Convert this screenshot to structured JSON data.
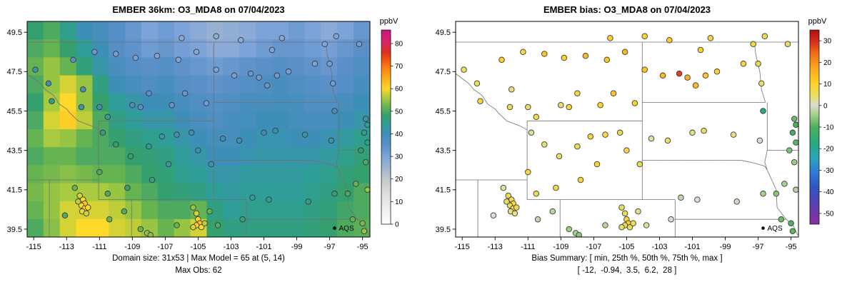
{
  "chart_data": [
    {
      "type": "heatmap",
      "title": "EMBER 36km: O3_MDA8 on 07/04/2023",
      "xlabel": "",
      "ylabel": "",
      "x_ticks": [
        -115,
        -113,
        -111,
        -109,
        -107,
        -105,
        -103,
        -101,
        -99,
        -97,
        -95
      ],
      "y_ticks": [
        39.5,
        41.5,
        43.5,
        45.5,
        47.5,
        49.5
      ],
      "lon_range": [
        -115.4,
        -94.55
      ],
      "lat_range": [
        39.1,
        50.05
      ],
      "colorbar": {
        "label": "ppbV",
        "range": [
          0,
          86
        ],
        "ticks": [
          0,
          10,
          20,
          30,
          40,
          50,
          60,
          70,
          80
        ],
        "stops": [
          [
            0,
            "#ffffff"
          ],
          [
            14,
            "#dcdcdc"
          ],
          [
            20,
            "#c2c8ce"
          ],
          [
            25,
            "#9fb4d2"
          ],
          [
            30,
            "#7da4d8"
          ],
          [
            35,
            "#5a8fc8"
          ],
          [
            40,
            "#3e8fb8"
          ],
          [
            44,
            "#2f9e98"
          ],
          [
            48,
            "#35a06e"
          ],
          [
            52,
            "#66b351"
          ],
          [
            56,
            "#a8ca3e"
          ],
          [
            60,
            "#ffd92a"
          ],
          [
            64,
            "#ffb21e"
          ],
          [
            68,
            "#ff8c12"
          ],
          [
            72,
            "#f4600e"
          ],
          [
            76,
            "#e03020"
          ],
          [
            81,
            "#d6256e"
          ],
          [
            86,
            "#c71585"
          ]
        ]
      },
      "grid": {
        "n_cols": 21,
        "n_rows": 12,
        "values": [
          [
            48,
            50,
            45,
            40,
            38,
            36,
            33,
            30,
            32,
            30,
            28,
            26,
            27,
            28,
            30,
            30,
            32,
            30,
            28,
            30,
            33
          ],
          [
            50,
            52,
            48,
            44,
            40,
            36,
            34,
            32,
            33,
            31,
            30,
            28,
            28,
            30,
            32,
            33,
            33,
            32,
            31,
            33,
            35
          ],
          [
            52,
            55,
            52,
            47,
            42,
            38,
            36,
            35,
            36,
            34,
            33,
            32,
            33,
            34,
            35,
            36,
            35,
            34,
            33,
            35,
            37
          ],
          [
            50,
            55,
            58,
            55,
            46,
            40,
            38,
            37,
            38,
            36,
            35,
            34,
            35,
            36,
            37,
            38,
            37,
            36,
            35,
            36,
            38
          ],
          [
            48,
            56,
            60,
            55,
            48,
            44,
            42,
            40,
            40,
            38,
            37,
            36,
            37,
            38,
            38,
            39,
            38,
            37,
            37,
            38,
            40
          ],
          [
            50,
            58,
            61,
            57,
            50,
            46,
            44,
            42,
            42,
            40,
            38,
            37,
            38,
            39,
            40,
            40,
            39,
            38,
            38,
            40,
            42
          ],
          [
            52,
            56,
            55,
            52,
            50,
            48,
            46,
            45,
            44,
            42,
            40,
            39,
            39,
            40,
            41,
            41,
            40,
            40,
            41,
            43,
            45
          ],
          [
            50,
            52,
            52,
            50,
            50,
            50,
            48,
            47,
            46,
            44,
            42,
            40,
            40,
            41,
            42,
            42,
            42,
            42,
            43,
            45,
            47
          ],
          [
            52,
            53,
            54,
            53,
            52,
            52,
            50,
            48,
            47,
            45,
            44,
            42,
            42,
            43,
            43,
            43,
            43,
            44,
            45,
            47,
            48
          ],
          [
            53,
            55,
            56,
            56,
            56,
            55,
            52,
            50,
            48,
            47,
            46,
            44,
            43,
            44,
            44,
            44,
            44,
            45,
            46,
            48,
            50
          ],
          [
            52,
            55,
            58,
            58,
            58,
            57,
            55,
            52,
            50,
            50,
            52,
            46,
            44,
            45,
            45,
            45,
            45,
            46,
            47,
            49,
            50
          ],
          [
            50,
            54,
            58,
            60,
            60,
            58,
            57,
            55,
            52,
            55,
            58,
            48,
            46,
            46,
            46,
            46,
            46,
            47,
            48,
            50,
            51
          ]
        ]
      },
      "point_value_key": "obs",
      "captions": [
        "Domain size: 31x53 | Max Model = 65 at (5, 14)",
        "Max Obs: 62"
      ]
    },
    {
      "type": "scatter",
      "title": "EMBER bias: O3_MDA8 on 07/04/2023",
      "xlabel": "",
      "ylabel": "",
      "x_ticks": [
        -115,
        -113,
        -111,
        -109,
        -107,
        -105,
        -103,
        -101,
        -99,
        -97,
        -95
      ],
      "y_ticks": [
        39.5,
        41.5,
        43.5,
        45.5,
        47.5,
        49.5
      ],
      "lon_range": [
        -115.4,
        -94.55
      ],
      "lat_range": [
        39.1,
        50.05
      ],
      "colorbar": {
        "label": "ppbV",
        "range": [
          -55,
          35
        ],
        "ticks": [
          -50,
          -40,
          -30,
          -20,
          -10,
          0,
          10,
          20,
          30
        ],
        "stops": [
          [
            -55,
            "#8b2fa0"
          ],
          [
            -46,
            "#5a3fb0"
          ],
          [
            -38,
            "#2f55c5"
          ],
          [
            -30,
            "#2f7fd6"
          ],
          [
            -24,
            "#2aa6b8"
          ],
          [
            -18,
            "#28a882"
          ],
          [
            -10,
            "#4daf5f"
          ],
          [
            -4,
            "#a8d18a"
          ],
          [
            0,
            "#d8dcd6"
          ],
          [
            4,
            "#e6e06a"
          ],
          [
            10,
            "#ffd22a"
          ],
          [
            17,
            "#ffa81e"
          ],
          [
            24,
            "#f1701a"
          ],
          [
            30,
            "#d62a1e"
          ],
          [
            35,
            "#b01010"
          ]
        ]
      },
      "point_value_key": "bias",
      "captions": [
        "Bias Summary: [ min, 25th %, 50th %, 75th %, max ]",
        "[ -12,  -0.94,  3.5,  6.2,  28 ]"
      ]
    }
  ],
  "map": {
    "legend_label": "AQS",
    "borders": [
      [
        [
          -115.4,
          49
        ],
        [
          -94.55,
          49
        ]
      ],
      [
        [
          -115.4,
          47.4
        ],
        [
          -114.6,
          46.9
        ],
        [
          -114.3,
          46.6
        ],
        [
          -113.8,
          46.3
        ],
        [
          -113.45,
          45.85
        ],
        [
          -113.0,
          45.6
        ],
        [
          -112.8,
          45.4
        ],
        [
          -112.3,
          45.0
        ],
        [
          -111.5,
          44.75
        ],
        [
          -111.05,
          44.55
        ]
      ],
      [
        [
          -111.05,
          45.0
        ],
        [
          -111.05,
          41.0
        ]
      ],
      [
        [
          -111.05,
          45.0
        ],
        [
          -104.05,
          45.0
        ]
      ],
      [
        [
          -104.05,
          49.0
        ],
        [
          -104.05,
          41.0
        ]
      ],
      [
        [
          -111.05,
          41.0
        ],
        [
          -102.05,
          41.0
        ]
      ],
      [
        [
          -115.4,
          42.0
        ],
        [
          -111.05,
          42.0
        ]
      ],
      [
        [
          -114.05,
          42.0
        ],
        [
          -114.05,
          39.1
        ]
      ],
      [
        [
          -109.05,
          41.0
        ],
        [
          -109.05,
          39.1
        ]
      ],
      [
        [
          -102.05,
          41.0
        ],
        [
          -102.05,
          39.1
        ]
      ],
      [
        [
          -102.05,
          40.0
        ],
        [
          -95.3,
          40.0
        ],
        [
          -94.9,
          39.75
        ],
        [
          -94.6,
          39.2
        ]
      ],
      [
        [
          -104.05,
          45.94
        ],
        [
          -96.56,
          45.94
        ]
      ],
      [
        [
          -104.05,
          43.0
        ],
        [
          -98.0,
          42.99
        ],
        [
          -97.2,
          42.85
        ],
        [
          -96.6,
          42.7
        ],
        [
          -96.45,
          42.5
        ]
      ],
      [
        [
          -96.45,
          42.5
        ],
        [
          -95.9,
          41.5
        ],
        [
          -95.85,
          40.6
        ],
        [
          -95.3,
          40.0
        ]
      ],
      [
        [
          -96.45,
          45.94
        ],
        [
          -96.45,
          43.5
        ]
      ],
      [
        [
          -96.56,
          45.94
        ],
        [
          -96.8,
          46.6
        ],
        [
          -96.9,
          47.5
        ],
        [
          -97.15,
          48.4
        ],
        [
          -97.23,
          49.0
        ]
      ],
      [
        [
          -96.45,
          43.5
        ],
        [
          -94.55,
          43.5
        ]
      ],
      [
        [
          -96.45,
          43.5
        ],
        [
          -96.6,
          42.9
        ],
        [
          -96.45,
          42.5
        ]
      ]
    ],
    "stations": [
      [
        -114.9,
        47.6,
        42,
        5
      ],
      [
        -114.1,
        46.9,
        40,
        6
      ],
      [
        -113.9,
        46.0,
        45,
        8
      ],
      [
        -112.0,
        46.6,
        38,
        3
      ],
      [
        -112.1,
        45.7,
        42,
        6
      ],
      [
        -111.0,
        45.7,
        40,
        5
      ],
      [
        -110.5,
        45.2,
        44,
        7
      ],
      [
        -109.0,
        45.8,
        38,
        4
      ],
      [
        -108.5,
        45.7,
        36,
        9
      ],
      [
        -108.0,
        46.4,
        35,
        8
      ],
      [
        -106.6,
        45.8,
        34,
        10
      ],
      [
        -105.8,
        46.4,
        33,
        12
      ],
      [
        -104.5,
        45.9,
        32,
        10
      ],
      [
        -112.6,
        48.1,
        36,
        10
      ],
      [
        -111.3,
        48.5,
        33,
        8
      ],
      [
        -110.0,
        48.4,
        32,
        12
      ],
      [
        -108.8,
        48.2,
        31,
        10
      ],
      [
        -107.5,
        48.3,
        30,
        14
      ],
      [
        -106.2,
        48.1,
        30,
        12
      ],
      [
        -105.1,
        48.5,
        29,
        15
      ],
      [
        -103.9,
        47.6,
        30,
        12
      ],
      [
        -102.8,
        47.3,
        31,
        14
      ],
      [
        -101.8,
        47.4,
        33,
        28
      ],
      [
        -101.3,
        47.2,
        32,
        16
      ],
      [
        -100.8,
        46.8,
        33,
        14
      ],
      [
        -100.2,
        47.3,
        32,
        12
      ],
      [
        -99.5,
        47.5,
        31,
        10
      ],
      [
        -97.9,
        47.9,
        30,
        8
      ],
      [
        -97.0,
        47.9,
        31,
        6
      ],
      [
        -96.8,
        46.9,
        32,
        5
      ],
      [
        -100.5,
        48.6,
        30,
        10
      ],
      [
        -97.3,
        48.9,
        29,
        8
      ],
      [
        -106.0,
        49.2,
        28,
        10
      ],
      [
        -103.9,
        49.3,
        27,
        9
      ],
      [
        -102.4,
        49.1,
        28,
        11
      ],
      [
        -99.9,
        49.2,
        29,
        8
      ],
      [
        -96.6,
        49.3,
        30,
        6
      ],
      [
        -95.2,
        48.9,
        32,
        4
      ],
      [
        -103.5,
        44.1,
        40,
        2
      ],
      [
        -102.5,
        44.0,
        41,
        4
      ],
      [
        -101.0,
        44.4,
        40,
        3
      ],
      [
        -100.3,
        44.5,
        41,
        5
      ],
      [
        -98.5,
        44.3,
        42,
        3
      ],
      [
        -96.9,
        44.0,
        43,
        0
      ],
      [
        -96.7,
        45.5,
        38,
        -18
      ],
      [
        -110.8,
        44.4,
        46,
        2
      ],
      [
        -110.0,
        43.8,
        48,
        4
      ],
      [
        -109.1,
        43.2,
        47,
        5
      ],
      [
        -108.0,
        43.7,
        44,
        6
      ],
      [
        -107.2,
        44.2,
        42,
        8
      ],
      [
        -106.3,
        44.3,
        41,
        7
      ],
      [
        -105.4,
        44.4,
        40,
        6
      ],
      [
        -105.0,
        43.5,
        41,
        8
      ],
      [
        -104.2,
        42.8,
        42,
        6
      ],
      [
        -106.8,
        42.8,
        43,
        10
      ],
      [
        -107.8,
        42.0,
        45,
        9
      ],
      [
        -109.3,
        41.6,
        48,
        7
      ],
      [
        -110.5,
        41.3,
        50,
        6
      ],
      [
        -111.0,
        42.4,
        50,
        8
      ],
      [
        -112.2,
        41.2,
        58,
        6
      ],
      [
        -112.0,
        41.0,
        60,
        7
      ],
      [
        -111.9,
        40.8,
        62,
        8
      ],
      [
        -112.1,
        40.7,
        60,
        5
      ],
      [
        -111.9,
        40.55,
        61,
        6
      ],
      [
        -112.05,
        40.4,
        59,
        4
      ],
      [
        -111.8,
        40.3,
        58,
        3
      ],
      [
        -112.3,
        40.9,
        57,
        5
      ],
      [
        -111.7,
        40.6,
        60,
        6
      ],
      [
        -112.5,
        41.6,
        52,
        2
      ],
      [
        -113.1,
        40.2,
        50,
        0
      ],
      [
        -110.4,
        40.0,
        52,
        -2
      ],
      [
        -109.5,
        40.4,
        50,
        -3
      ],
      [
        -108.5,
        39.5,
        52,
        -5
      ],
      [
        -108.1,
        39.3,
        55,
        -4
      ],
      [
        -105.3,
        40.6,
        55,
        5
      ],
      [
        -105.1,
        40.3,
        58,
        6
      ],
      [
        -105.0,
        40.0,
        60,
        8
      ],
      [
        -104.9,
        39.8,
        62,
        10
      ],
      [
        -105.1,
        39.7,
        61,
        7
      ],
      [
        -104.8,
        39.6,
        60,
        6
      ],
      [
        -105.3,
        39.6,
        58,
        4
      ],
      [
        -104.6,
        39.8,
        57,
        5
      ],
      [
        -104.3,
        40.4,
        52,
        3
      ],
      [
        -103.8,
        39.7,
        50,
        2
      ],
      [
        -102.3,
        40.0,
        47,
        0
      ],
      [
        -106.3,
        39.7,
        52,
        -3
      ],
      [
        -107.9,
        39.2,
        54,
        -6
      ],
      [
        -101.7,
        41.1,
        44,
        -2
      ],
      [
        -100.7,
        41.0,
        45,
        0
      ],
      [
        -98.3,
        40.9,
        46,
        -1
      ],
      [
        -96.7,
        41.3,
        48,
        -4
      ],
      [
        -95.9,
        41.3,
        50,
        -6
      ],
      [
        -95.6,
        40.0,
        52,
        -8
      ],
      [
        -95.0,
        39.8,
        53,
        -10
      ],
      [
        -94.9,
        39.4,
        55,
        -9
      ],
      [
        -94.8,
        45.1,
        42,
        -8
      ],
      [
        -94.7,
        44.8,
        44,
        -10
      ],
      [
        -94.9,
        44.4,
        45,
        -12
      ],
      [
        -94.7,
        43.9,
        46,
        -9
      ],
      [
        -95.1,
        43.5,
        48,
        -7
      ],
      [
        -94.8,
        42.9,
        50,
        -5
      ],
      [
        -95.4,
        41.8,
        52,
        -4
      ],
      [
        -94.7,
        41.5,
        55,
        -3
      ]
    ]
  }
}
